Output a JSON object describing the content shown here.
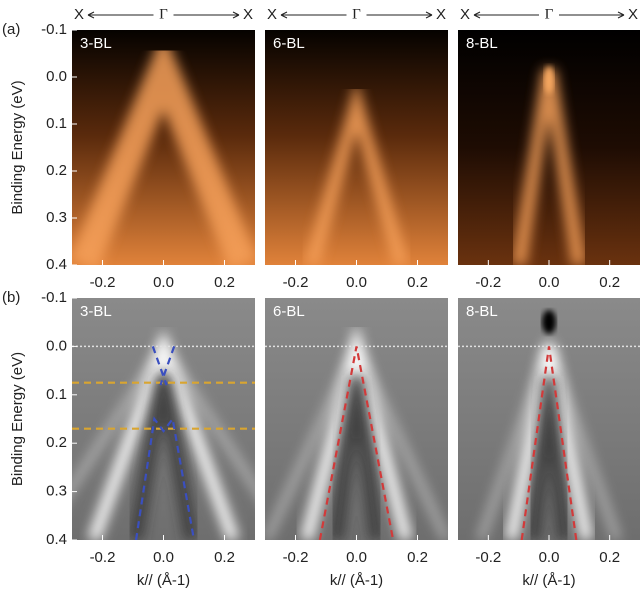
{
  "chart_data": [
    {
      "type": "image",
      "cmap": "orange",
      "panel_label": "3-BL",
      "row_label": "(a)",
      "ylabel": "Binding Energy (eV)",
      "x_path": [
        "X",
        "Γ",
        "X"
      ],
      "xlim": [
        -0.3,
        0.3
      ],
      "ylim": [
        -0.1,
        0.4
      ],
      "y_inverted": true,
      "xticks": [
        -0.2,
        {
          "value": 0,
          "label": "0.0"
        },
        0.2
      ],
      "yticks": [
        -0.1,
        {
          "value": 0,
          "label": "0.0"
        },
        0.1,
        0.2,
        0.3,
        0.4
      ],
      "series": []
    },
    {
      "type": "image",
      "cmap": "orange",
      "panel_label": "6-BL",
      "x_path": [
        "X",
        "Γ",
        "X"
      ],
      "xlim": [
        -0.3,
        0.3
      ],
      "ylim": [
        -0.1,
        0.4
      ],
      "y_inverted": true,
      "xticks": [
        -0.2,
        {
          "value": 0,
          "label": "0.0"
        },
        0.2
      ],
      "series": []
    },
    {
      "type": "image",
      "cmap": "orange",
      "panel_label": "8-BL",
      "x_path": [
        "X",
        "Γ",
        "X"
      ],
      "xlim": [
        -0.3,
        0.3
      ],
      "ylim": [
        -0.1,
        0.4
      ],
      "y_inverted": true,
      "xticks": [
        -0.2,
        {
          "value": 0,
          "label": "0.0"
        },
        0.2
      ],
      "series": []
    },
    {
      "type": "image",
      "cmap": "gray",
      "panel_label": "3-BL",
      "row_label": "(b)",
      "ylabel": "Binding Energy (eV)",
      "xlabel": "k// (Å-1)",
      "xlim": [
        -0.3,
        0.3
      ],
      "ylim": [
        -0.1,
        0.4
      ],
      "y_inverted": true,
      "xticks": [
        -0.2,
        {
          "value": 0,
          "label": "0.0"
        },
        0.2
      ],
      "yticks": [
        -0.1,
        {
          "value": 0,
          "label": "0.0"
        },
        0.1,
        0.2,
        0.3,
        0.4
      ],
      "series": [
        {
          "color": "#e0e0e0",
          "dash": "dotted",
          "x": [
            -0.3,
            0.3
          ],
          "values": [
            0,
            0
          ]
        },
        {
          "color": "#d9a530",
          "dash": "dashed",
          "x": [
            -0.3,
            0.3
          ],
          "values": [
            0.075,
            0.075
          ]
        },
        {
          "color": "#d9a530",
          "dash": "dashed",
          "x": [
            -0.3,
            0.3
          ],
          "values": [
            0.17,
            0.17
          ]
        },
        {
          "color": "#3a4fc0",
          "dash": "dashed",
          "x": [
            -0.035,
            0.01
          ],
          "values": [
            0,
            0.08
          ]
        },
        {
          "color": "#3a4fc0",
          "dash": "dashed",
          "x": [
            0.035,
            -0.01
          ],
          "values": [
            0,
            0.08
          ]
        },
        {
          "color": "#3a4fc0",
          "dash": "dashed",
          "x": [
            -0.09,
            -0.03,
            0,
            0.03,
            0.1
          ],
          "values": [
            0.4,
            0.15,
            0.175,
            0.15,
            0.4
          ]
        }
      ]
    },
    {
      "type": "image",
      "cmap": "gray",
      "panel_label": "6-BL",
      "xlabel": "k// (Å-1)",
      "xlim": [
        -0.3,
        0.3
      ],
      "ylim": [
        -0.1,
        0.4
      ],
      "y_inverted": true,
      "xticks": [
        -0.2,
        {
          "value": 0,
          "label": "0.0"
        },
        0.2
      ],
      "series": [
        {
          "color": "#e0e0e0",
          "dash": "dotted",
          "x": [
            -0.3,
            0.3
          ],
          "values": [
            0,
            0
          ]
        },
        {
          "color": "#d23a3a",
          "dash": "dashed",
          "x": [
            -0.12,
            0,
            0.12
          ],
          "values": [
            0.4,
            0,
            0.4
          ]
        }
      ]
    },
    {
      "type": "image",
      "cmap": "gray",
      "panel_label": "8-BL",
      "xlabel": "k// (Å-1)",
      "xlim": [
        -0.3,
        0.3
      ],
      "ylim": [
        -0.1,
        0.4
      ],
      "y_inverted": true,
      "xticks": [
        -0.2,
        {
          "value": 0,
          "label": "0.0"
        },
        0.2
      ],
      "series": [
        {
          "color": "#e0e0e0",
          "dash": "dotted",
          "x": [
            -0.3,
            0.3
          ],
          "values": [
            0,
            0
          ]
        },
        {
          "color": "#d23a3a",
          "dash": "dashed",
          "x": [
            -0.09,
            0,
            0.09
          ],
          "values": [
            0.4,
            0,
            0.4
          ]
        }
      ]
    }
  ]
}
